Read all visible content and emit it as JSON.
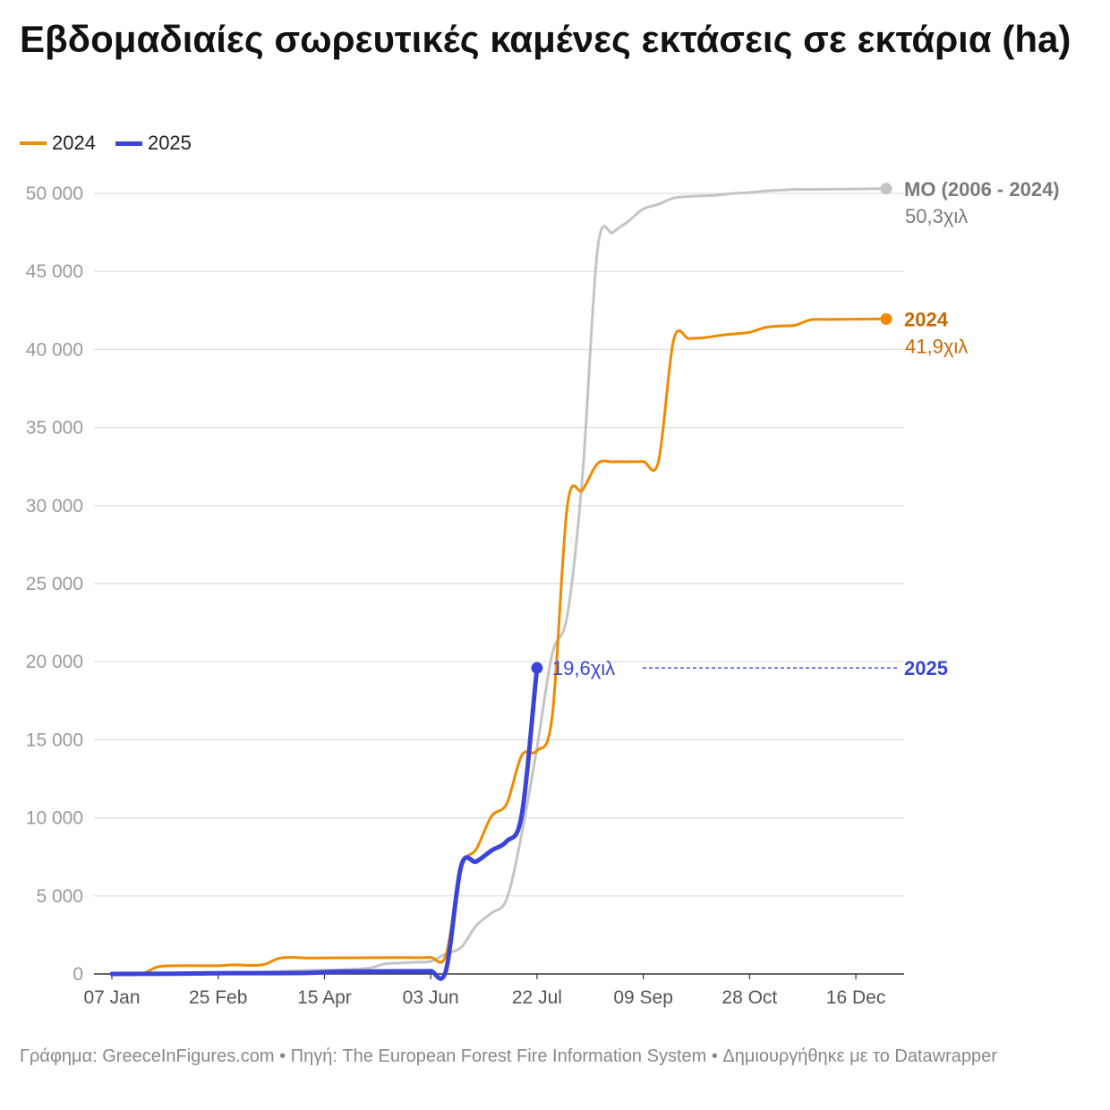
{
  "title": "Εβδομαδιαίες σωρευτικές καμένες εκτάσεις σε εκτάρια (ha)",
  "legend": [
    {
      "label": "2024",
      "color": "#f08a00"
    },
    {
      "label": "2025",
      "color": "#3a44d8"
    }
  ],
  "footer": "Γράφημα: GreeceInFigures.com • Πηγή: The European Forest Fire Information System • Δημιουργήθηκε με το Datawrapper",
  "chart_data": {
    "type": "line",
    "title": "Εβδομαδιαίες σωρευτικές καμένες εκτάσεις σε εκτάρια (ha)",
    "xlabel": "",
    "ylabel": "",
    "x_unit": "week of year (1 = 07 Jan)",
    "xlim": [
      1,
      52
    ],
    "ylim": [
      0,
      50000
    ],
    "y_ticks": [
      {
        "v": 0,
        "label": "0"
      },
      {
        "v": 5000,
        "label": "5 000"
      },
      {
        "v": 10000,
        "label": "10 000"
      },
      {
        "v": 15000,
        "label": "15 000"
      },
      {
        "v": 20000,
        "label": "20 000"
      },
      {
        "v": 25000,
        "label": "25 000"
      },
      {
        "v": 30000,
        "label": "30 000"
      },
      {
        "v": 35000,
        "label": "35 000"
      },
      {
        "v": 40000,
        "label": "40 000"
      },
      {
        "v": 45000,
        "label": "45 000"
      },
      {
        "v": 50000,
        "label": "50 000"
      }
    ],
    "x_ticks": [
      {
        "v": 1,
        "label": "07 Jan"
      },
      {
        "v": 8,
        "label": "25 Feb"
      },
      {
        "v": 15,
        "label": "15 Apr"
      },
      {
        "v": 22,
        "label": "03 Jun"
      },
      {
        "v": 29,
        "label": "22 Jul"
      },
      {
        "v": 36,
        "label": "09 Sep"
      },
      {
        "v": 43,
        "label": "28 Oct"
      },
      {
        "v": 50,
        "label": "16 Dec"
      }
    ],
    "series": [
      {
        "name": "ΜΟ (2006 - 2024)",
        "color": "#c4c4c4",
        "width": 3,
        "label_value": "50,3χιλ",
        "points": [
          [
            1,
            0
          ],
          [
            3,
            20
          ],
          [
            5,
            40
          ],
          [
            8,
            80
          ],
          [
            11,
            130
          ],
          [
            14,
            230
          ],
          [
            17,
            300
          ],
          [
            18,
            380
          ],
          [
            19,
            650
          ],
          [
            20,
            700
          ],
          [
            21,
            750
          ],
          [
            22,
            800
          ],
          [
            23,
            1300
          ],
          [
            24,
            1700
          ],
          [
            25,
            3100
          ],
          [
            26,
            3900
          ],
          [
            27,
            4800
          ],
          [
            28,
            9000
          ],
          [
            29,
            14500
          ],
          [
            30,
            20500
          ],
          [
            31,
            23000
          ],
          [
            32,
            32000
          ],
          [
            33,
            46500
          ],
          [
            34,
            47500
          ],
          [
            35,
            48200
          ],
          [
            36,
            49000
          ],
          [
            37,
            49300
          ],
          [
            38,
            49700
          ],
          [
            39,
            49800
          ],
          [
            40,
            49850
          ],
          [
            41,
            49900
          ],
          [
            42,
            50000
          ],
          [
            43,
            50050
          ],
          [
            44,
            50150
          ],
          [
            45,
            50200
          ],
          [
            46,
            50250
          ],
          [
            47,
            50250
          ],
          [
            48,
            50260
          ],
          [
            49,
            50270
          ],
          [
            50,
            50280
          ],
          [
            51,
            50290
          ],
          [
            52,
            50300
          ]
        ]
      },
      {
        "name": "2024",
        "color": "#f08a00",
        "width": 3,
        "label_value": "41,9χιλ",
        "points": [
          [
            1,
            0
          ],
          [
            3,
            20
          ],
          [
            4,
            450
          ],
          [
            5,
            520
          ],
          [
            8,
            530
          ],
          [
            9,
            580
          ],
          [
            11,
            600
          ],
          [
            12,
            1000
          ],
          [
            14,
            1020
          ],
          [
            16,
            1030
          ],
          [
            18,
            1040
          ],
          [
            20,
            1050
          ],
          [
            22,
            1060
          ],
          [
            23,
            1200
          ],
          [
            24,
            6800
          ],
          [
            25,
            8000
          ],
          [
            26,
            10100
          ],
          [
            27,
            10900
          ],
          [
            28,
            14000
          ],
          [
            29,
            14300
          ],
          [
            30,
            16500
          ],
          [
            31,
            30000
          ],
          [
            32,
            31000
          ],
          [
            33,
            32700
          ],
          [
            34,
            32800
          ],
          [
            35,
            32810
          ],
          [
            36,
            32820
          ],
          [
            37,
            32830
          ],
          [
            38,
            40600
          ],
          [
            39,
            40700
          ],
          [
            40,
            40750
          ],
          [
            41,
            40900
          ],
          [
            42,
            41000
          ],
          [
            43,
            41100
          ],
          [
            44,
            41400
          ],
          [
            45,
            41500
          ],
          [
            46,
            41550
          ],
          [
            47,
            41900
          ],
          [
            48,
            41920
          ],
          [
            49,
            41930
          ],
          [
            50,
            41940
          ],
          [
            51,
            41950
          ],
          [
            52,
            41950
          ]
        ]
      },
      {
        "name": "2025",
        "color": "#3a44d8",
        "width": 5,
        "label_value": "19,6χιλ",
        "points": [
          [
            1,
            0
          ],
          [
            5,
            20
          ],
          [
            9,
            50
          ],
          [
            14,
            70
          ],
          [
            16,
            150
          ],
          [
            18,
            160
          ],
          [
            20,
            170
          ],
          [
            22,
            175
          ],
          [
            23,
            200
          ],
          [
            24,
            6900
          ],
          [
            25,
            7200
          ],
          [
            26,
            7900
          ],
          [
            27,
            8500
          ],
          [
            28,
            10200
          ],
          [
            29,
            19600
          ]
        ]
      }
    ],
    "annotations": [
      {
        "series": "2025",
        "text": "2025"
      },
      {
        "series": "2024",
        "text": "2024"
      },
      {
        "series": "ΜΟ (2006 - 2024)",
        "text": "ΜΟ (2006 - 2024)"
      }
    ]
  }
}
